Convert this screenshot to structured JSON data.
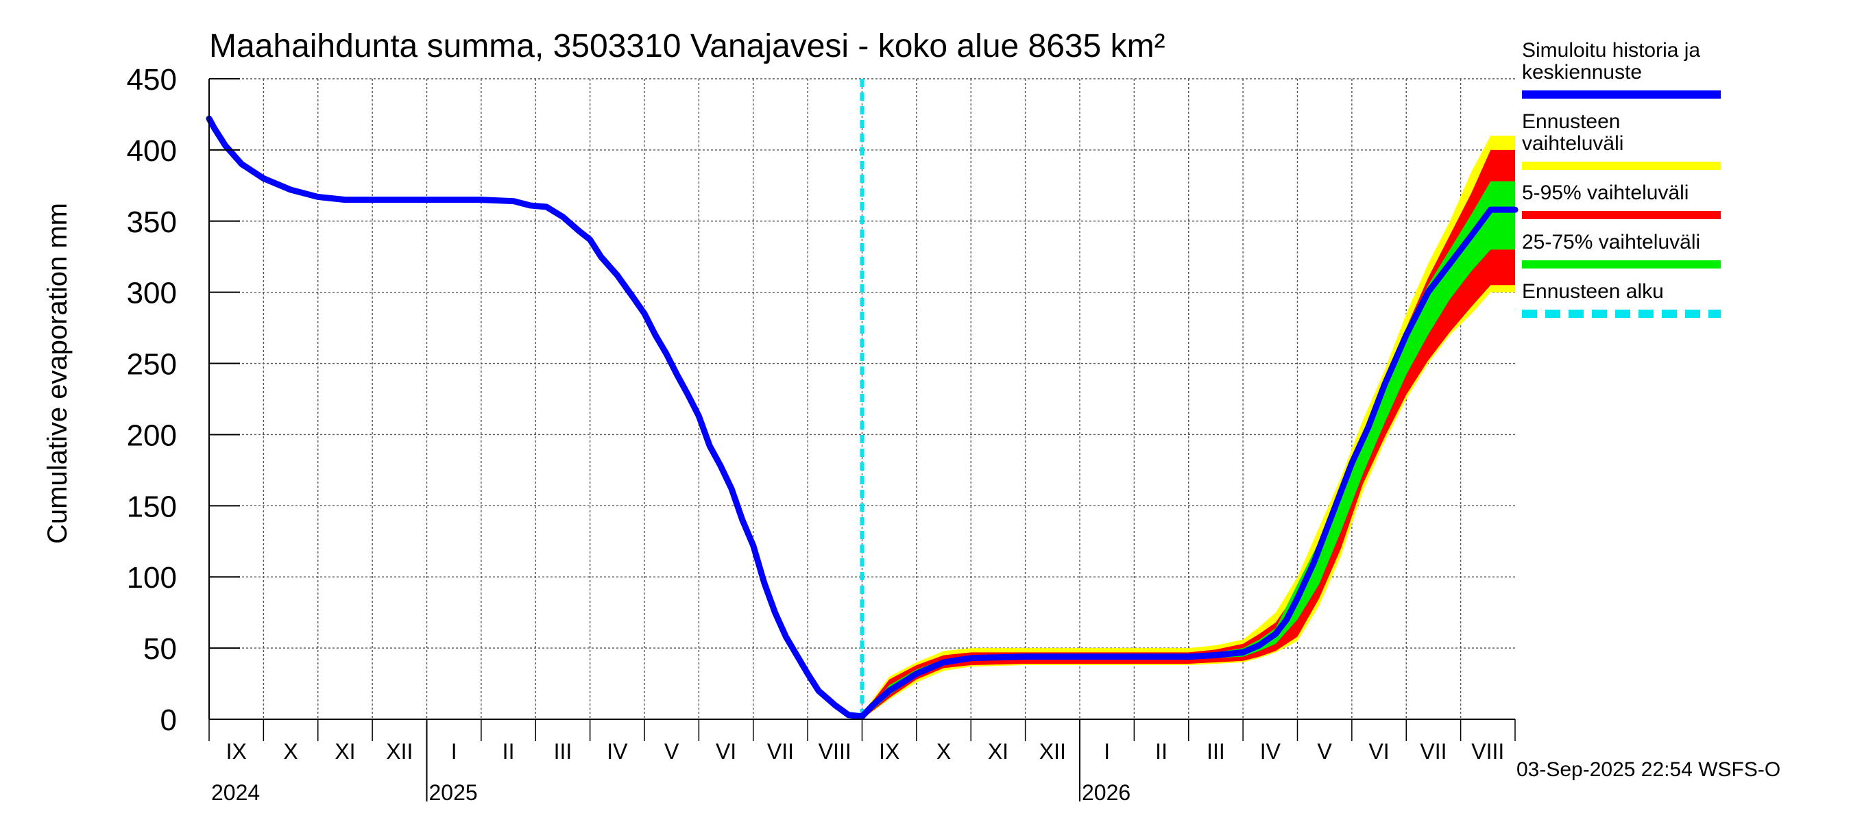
{
  "chart_data": {
    "type": "line",
    "title": "Maahaihdunta summa, 3503310 Vanajavesi - koko alue 8635 km²",
    "ylabel": "Cumulative evaporation   mm",
    "xlabel": "",
    "ylim": [
      0,
      450
    ],
    "yticks": [
      0,
      50,
      100,
      150,
      200,
      250,
      300,
      350,
      400,
      450
    ],
    "grid": true,
    "legend_position": "right",
    "months": [
      {
        "label": "IX"
      },
      {
        "label": "X"
      },
      {
        "label": "XI"
      },
      {
        "label": "XII"
      },
      {
        "label": "I"
      },
      {
        "label": "II"
      },
      {
        "label": "III"
      },
      {
        "label": "IV"
      },
      {
        "label": "V"
      },
      {
        "label": "VI"
      },
      {
        "label": "VII"
      },
      {
        "label": "VIII"
      },
      {
        "label": "IX"
      },
      {
        "label": "X"
      },
      {
        "label": "XI"
      },
      {
        "label": "XII"
      },
      {
        "label": "I"
      },
      {
        "label": "II"
      },
      {
        "label": "III"
      },
      {
        "label": "IV"
      },
      {
        "label": "V"
      },
      {
        "label": "VI"
      },
      {
        "label": "VII"
      },
      {
        "label": "VIII"
      }
    ],
    "years": [
      {
        "label": "2024",
        "month_index": 0
      },
      {
        "label": "2025",
        "month_index": 4
      },
      {
        "label": "2026",
        "month_index": 16
      }
    ],
    "forecast_start_month": 12,
    "series": [
      {
        "name": "Simuloitu historia ja keskiennuste",
        "color": "#0000ff",
        "points": [
          [
            0,
            422
          ],
          [
            0.1,
            415
          ],
          [
            0.3,
            403
          ],
          [
            0.6,
            390
          ],
          [
            1,
            380
          ],
          [
            1.5,
            372
          ],
          [
            2,
            367
          ],
          [
            2.5,
            365
          ],
          [
            3,
            365
          ],
          [
            4,
            365
          ],
          [
            5,
            365
          ],
          [
            5.6,
            364
          ],
          [
            5.9,
            361
          ],
          [
            6.2,
            360
          ],
          [
            6.5,
            353
          ],
          [
            6.8,
            343
          ],
          [
            7,
            337
          ],
          [
            7.2,
            325
          ],
          [
            7.5,
            312
          ],
          [
            7.8,
            296
          ],
          [
            8,
            285
          ],
          [
            8.2,
            270
          ],
          [
            8.4,
            257
          ],
          [
            8.6,
            242
          ],
          [
            8.8,
            228
          ],
          [
            9,
            213
          ],
          [
            9.2,
            192
          ],
          [
            9.4,
            178
          ],
          [
            9.6,
            162
          ],
          [
            9.8,
            140
          ],
          [
            10,
            122
          ],
          [
            10.2,
            96
          ],
          [
            10.4,
            75
          ],
          [
            10.6,
            58
          ],
          [
            10.8,
            45
          ],
          [
            11,
            32
          ],
          [
            11.2,
            20
          ],
          [
            11.5,
            10
          ],
          [
            11.75,
            3
          ],
          [
            12,
            2
          ],
          [
            12.2,
            10
          ],
          [
            12.5,
            20
          ],
          [
            13,
            32
          ],
          [
            13.5,
            40
          ],
          [
            14,
            43
          ],
          [
            15,
            44
          ],
          [
            16,
            44
          ],
          [
            17,
            44
          ],
          [
            18,
            44
          ],
          [
            18.5,
            45
          ],
          [
            19,
            47
          ],
          [
            19.3,
            52
          ],
          [
            19.6,
            60
          ],
          [
            19.8,
            70
          ],
          [
            20,
            85
          ],
          [
            20.3,
            110
          ],
          [
            20.6,
            140
          ],
          [
            21,
            180
          ],
          [
            21.3,
            205
          ],
          [
            21.6,
            235
          ],
          [
            22,
            270
          ],
          [
            22.4,
            300
          ],
          [
            22.8,
            320
          ],
          [
            23.2,
            340
          ],
          [
            23.55,
            358
          ],
          [
            24,
            358
          ]
        ]
      }
    ],
    "bands": [
      {
        "name": "Ennusteen vaihteluväli",
        "color": "#ffff00",
        "points": [
          [
            12,
            0,
            4
          ],
          [
            12.5,
            14,
            30
          ],
          [
            13,
            26,
            40
          ],
          [
            13.5,
            34,
            48
          ],
          [
            14,
            37,
            50
          ],
          [
            15,
            38,
            50
          ],
          [
            16,
            38,
            50
          ],
          [
            17,
            38,
            50
          ],
          [
            18,
            38,
            50
          ],
          [
            18.5,
            39,
            52
          ],
          [
            19,
            40,
            56
          ],
          [
            19.3,
            43,
            65
          ],
          [
            19.6,
            47,
            75
          ],
          [
            20,
            55,
            100
          ],
          [
            20.4,
            80,
            135
          ],
          [
            20.8,
            115,
            170
          ],
          [
            21.2,
            160,
            210
          ],
          [
            21.6,
            195,
            245
          ],
          [
            22,
            225,
            285
          ],
          [
            22.4,
            250,
            320
          ],
          [
            22.8,
            270,
            350
          ],
          [
            23.2,
            285,
            385
          ],
          [
            23.55,
            300,
            410
          ],
          [
            24,
            300,
            410
          ]
        ]
      },
      {
        "name": "5-95% vaihteluväli",
        "color": "#ff0000",
        "points": [
          [
            12,
            0,
            3
          ],
          [
            12.5,
            15,
            28
          ],
          [
            13,
            28,
            38
          ],
          [
            13.5,
            36,
            45
          ],
          [
            14,
            38,
            47
          ],
          [
            15,
            39,
            47
          ],
          [
            16,
            39,
            47
          ],
          [
            17,
            39,
            47
          ],
          [
            18,
            39,
            47
          ],
          [
            18.5,
            40,
            49
          ],
          [
            19,
            41,
            53
          ],
          [
            19.3,
            44,
            60
          ],
          [
            19.6,
            48,
            68
          ],
          [
            20,
            58,
            90
          ],
          [
            20.4,
            85,
            125
          ],
          [
            20.8,
            120,
            160
          ],
          [
            21.2,
            165,
            200
          ],
          [
            21.6,
            198,
            235
          ],
          [
            22,
            228,
            275
          ],
          [
            22.4,
            252,
            310
          ],
          [
            22.8,
            272,
            340
          ],
          [
            23.2,
            290,
            370
          ],
          [
            23.55,
            305,
            400
          ],
          [
            24,
            305,
            400
          ]
        ]
      },
      {
        "name": "25-75% vaihteluväli",
        "color": "#00ee00",
        "points": [
          [
            12,
            0,
            2
          ],
          [
            12.5,
            17,
            24
          ],
          [
            13,
            30,
            35
          ],
          [
            13.5,
            38,
            42
          ],
          [
            14,
            41,
            45
          ],
          [
            15,
            42,
            46
          ],
          [
            16,
            42,
            46
          ],
          [
            17,
            42,
            46
          ],
          [
            18,
            42,
            46
          ],
          [
            18.5,
            43,
            47
          ],
          [
            19,
            44,
            50
          ],
          [
            19.3,
            48,
            56
          ],
          [
            19.6,
            53,
            64
          ],
          [
            20,
            70,
            95
          ],
          [
            20.4,
            95,
            125
          ],
          [
            20.8,
            132,
            160
          ],
          [
            21.2,
            172,
            198
          ],
          [
            21.6,
            208,
            238
          ],
          [
            22,
            242,
            275
          ],
          [
            22.4,
            270,
            305
          ],
          [
            22.8,
            295,
            330
          ],
          [
            23.2,
            315,
            355
          ],
          [
            23.55,
            330,
            378
          ],
          [
            24,
            330,
            378
          ]
        ]
      }
    ]
  },
  "legend": {
    "items": [
      {
        "label": "Simuloitu historia ja keskiennuste",
        "color": "#0000ff",
        "style": "solid"
      },
      {
        "label": "Ennusteen vaihteluväli",
        "color": "#ffff00",
        "style": "solid"
      },
      {
        "label": "5-95% vaihteluväli",
        "color": "#ff0000",
        "style": "solid"
      },
      {
        "label": "25-75% vaihteluväli",
        "color": "#00ee00",
        "style": "solid"
      },
      {
        "label": "Ennusteen alku",
        "color": "#00e5ee",
        "style": "dashed"
      }
    ]
  },
  "footer": {
    "stamp": "03-Sep-2025 22:54 WSFS-O"
  }
}
